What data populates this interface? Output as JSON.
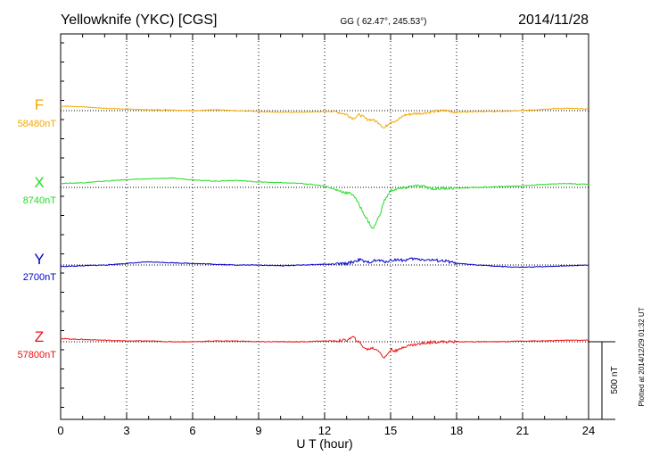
{
  "chart_data": {
    "type": "line",
    "title": "Yellowknife (YKC)  [CGS]",
    "coordinates": "GG ( 62.47°, 245.53°)",
    "date": "2014/11/28",
    "xlabel": "U T (hour)",
    "xlim": [
      0,
      24
    ],
    "x_ticks": [
      "0",
      "3",
      "6",
      "9",
      "12",
      "15",
      "18",
      "21",
      "24"
    ],
    "grid": "vertical dotted lines every 3 hours",
    "scale_bar_label": "500 nT",
    "plotted_note": "Plotted at 2014/12/29 01:32 UT",
    "series": [
      {
        "name": "F",
        "baseline_label": "58480nT",
        "color": "#f5a800",
        "x": [
          0,
          1,
          2,
          3,
          4,
          5,
          6,
          7,
          8,
          9,
          10,
          11,
          12,
          12.5,
          13,
          13.3,
          13.6,
          13.9,
          14.2,
          14.5,
          14.7,
          15.0,
          15.3,
          15.6,
          16.0,
          16.5,
          17.0,
          17.5,
          18,
          19,
          20,
          21,
          22,
          23,
          24
        ],
        "values": [
          30,
          25,
          15,
          10,
          5,
          5,
          0,
          5,
          0,
          -5,
          -10,
          -10,
          -5,
          -5,
          -25,
          -50,
          -25,
          -55,
          -60,
          -80,
          -115,
          -70,
          -65,
          -30,
          -20,
          -15,
          -5,
          0,
          -10,
          -5,
          -5,
          0,
          10,
          15,
          10
        ]
      },
      {
        "name": "X",
        "baseline_label": "8740nT",
        "color": "#22dd22",
        "x": [
          0,
          1,
          2,
          3,
          4,
          5,
          6,
          7,
          8,
          9,
          10,
          11,
          12,
          12.5,
          13,
          13.3,
          13.6,
          13.9,
          14.2,
          14.5,
          14.7,
          15.0,
          15.3,
          15.6,
          16.0,
          16.5,
          17.0,
          17.5,
          18,
          19,
          20,
          21,
          22,
          23,
          24
        ],
        "values": [
          25,
          30,
          40,
          50,
          55,
          60,
          50,
          40,
          45,
          35,
          30,
          25,
          10,
          -15,
          -35,
          -45,
          -120,
          -200,
          -270,
          -180,
          -90,
          -20,
          -10,
          -5,
          10,
          5,
          -10,
          -5,
          -5,
          0,
          5,
          10,
          20,
          25,
          20
        ]
      },
      {
        "name": "Y",
        "baseline_label": "2700nT",
        "color": "#0000cc",
        "x": [
          0,
          1,
          2,
          3,
          4,
          5,
          6,
          7,
          8,
          9,
          10,
          11,
          12,
          12.5,
          13,
          13.3,
          13.6,
          13.9,
          14.2,
          14.5,
          14.7,
          15.0,
          15.3,
          15.6,
          16.0,
          16.5,
          17.0,
          17.5,
          18,
          19,
          20,
          21,
          22,
          23,
          24
        ],
        "values": [
          -10,
          -5,
          0,
          10,
          20,
          15,
          10,
          5,
          0,
          0,
          -5,
          0,
          5,
          5,
          10,
          20,
          35,
          15,
          25,
          30,
          20,
          30,
          35,
          30,
          40,
          35,
          30,
          25,
          10,
          0,
          -10,
          -15,
          -10,
          -5,
          0
        ]
      },
      {
        "name": "Z",
        "baseline_label": "57800nT",
        "color": "#ee1111",
        "x": [
          0,
          1,
          2,
          3,
          4,
          5,
          6,
          7,
          8,
          9,
          10,
          11,
          12,
          12.5,
          13,
          13.3,
          13.6,
          13.9,
          14.2,
          14.5,
          14.7,
          15.0,
          15.3,
          15.6,
          16.0,
          16.5,
          17.0,
          17.5,
          18,
          19,
          20,
          21,
          22,
          23,
          24
        ],
        "values": [
          20,
          15,
          10,
          5,
          5,
          0,
          0,
          5,
          5,
          0,
          0,
          0,
          5,
          5,
          10,
          30,
          -10,
          -50,
          -40,
          -60,
          -110,
          -50,
          -60,
          -30,
          -20,
          -10,
          0,
          0,
          0,
          0,
          0,
          5,
          5,
          10,
          10
        ]
      }
    ]
  }
}
